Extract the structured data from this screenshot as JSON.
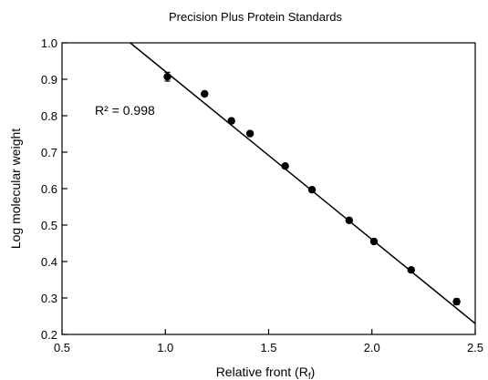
{
  "chart_data": {
    "type": "scatter",
    "title": "Precision Plus Protein Standards",
    "xlabel": "Relative front (R",
    "xlabel_sub": "f",
    "xlabel_close": ")",
    "ylabel": "Log molecular weight",
    "xlim": [
      0.5,
      2.5
    ],
    "ylim": [
      0.2,
      1.0
    ],
    "x_ticks": [
      0.5,
      1.0,
      1.5,
      2.0,
      2.5
    ],
    "x_tick_labels": [
      "0.5",
      "1.0",
      "1.5",
      "2.0",
      "2.5"
    ],
    "y_ticks": [
      0.2,
      0.3,
      0.4,
      0.5,
      0.6,
      0.7,
      0.8,
      0.9,
      1.0
    ],
    "y_tick_labels": [
      "0.2",
      "0.3",
      "0.4",
      "0.5",
      "0.6",
      "0.7",
      "0.8",
      "0.9",
      "1.0"
    ],
    "grid": false,
    "legend": "none",
    "annotation": "R² = 0.998",
    "points": [
      {
        "x": 1.01,
        "y": 0.907,
        "err": 0.012
      },
      {
        "x": 1.19,
        "y": 0.86,
        "err": 0.006
      },
      {
        "x": 1.32,
        "y": 0.786,
        "err": 0.006
      },
      {
        "x": 1.41,
        "y": 0.751,
        "err": 0.006
      },
      {
        "x": 1.58,
        "y": 0.662,
        "err": 0.006
      },
      {
        "x": 1.71,
        "y": 0.597,
        "err": 0.006
      },
      {
        "x": 1.89,
        "y": 0.513,
        "err": 0.006
      },
      {
        "x": 2.01,
        "y": 0.455,
        "err": 0.006
      },
      {
        "x": 2.19,
        "y": 0.377,
        "err": 0.006
      },
      {
        "x": 2.41,
        "y": 0.29,
        "err": 0.008
      }
    ],
    "fit_line": {
      "x": [
        0.83,
        2.5
      ],
      "y": [
        1.0,
        0.23
      ]
    },
    "colors": {
      "marker": "#000000",
      "line": "#000000",
      "axes": "#000000"
    }
  }
}
